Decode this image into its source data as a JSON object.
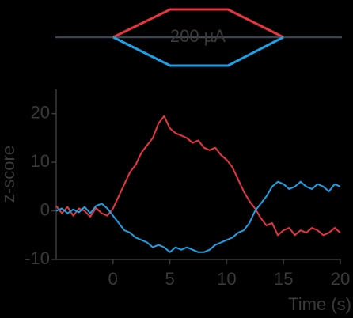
{
  "chart_data": {
    "type": "line",
    "annotation": "200 µA",
    "x_label": "Time (s)",
    "y_label": "z-score",
    "x": [
      -5,
      -4.5,
      -4,
      -3.5,
      -3,
      -2.5,
      -2,
      -1.5,
      -1,
      -0.5,
      0,
      0.5,
      1,
      1.5,
      2,
      2.5,
      3,
      3.5,
      4,
      4.5,
      5,
      5.5,
      6,
      6.5,
      7,
      7.5,
      8,
      8.5,
      9,
      9.5,
      10,
      10.5,
      11,
      11.5,
      12,
      12.5,
      13,
      13.5,
      14,
      14.5,
      15,
      15.5,
      16,
      16.5,
      17,
      17.5,
      18,
      18.5,
      19,
      19.5,
      20
    ],
    "series": [
      {
        "color": "#e8353f",
        "values": [
          1,
          -0.5,
          0.8,
          -1,
          0.5,
          0,
          -1.2,
          0.6,
          -0.5,
          -1,
          0.5,
          3,
          5.5,
          8,
          9.5,
          12,
          13.5,
          15,
          18,
          19.5,
          17,
          16,
          15.5,
          15,
          14,
          14.5,
          13,
          12.5,
          13,
          11.5,
          10.5,
          9,
          6.5,
          4,
          2,
          0.5,
          -1.5,
          -3,
          -2.5,
          -5,
          -4,
          -3.5,
          -5,
          -4,
          -4.5,
          -3.5,
          -4,
          -5,
          -4.5,
          -3.5,
          -4.5
        ]
      },
      {
        "color": "#1aa3e8",
        "values": [
          0,
          0.5,
          -0.5,
          0.3,
          -0.3,
          0.8,
          -0.5,
          1,
          1.5,
          0.5,
          -1,
          -2.5,
          -4,
          -4.5,
          -5.5,
          -6,
          -6.5,
          -7.5,
          -7,
          -7.5,
          -8.5,
          -7.5,
          -8,
          -7.5,
          -8,
          -8.5,
          -8.5,
          -8,
          -7,
          -6.5,
          -6,
          -5.5,
          -4.5,
          -4,
          -2.5,
          0,
          1.5,
          3,
          5,
          6,
          5.5,
          4.5,
          5,
          6,
          5,
          4.5,
          5.5,
          5,
          4,
          5.5,
          5
        ]
      }
    ],
    "xlim": [
      -5,
      20
    ],
    "xticks": [
      0,
      5,
      10,
      15,
      20
    ],
    "ylim": [
      -10,
      25
    ],
    "yticks": [
      -10,
      0,
      10,
      20
    ]
  }
}
